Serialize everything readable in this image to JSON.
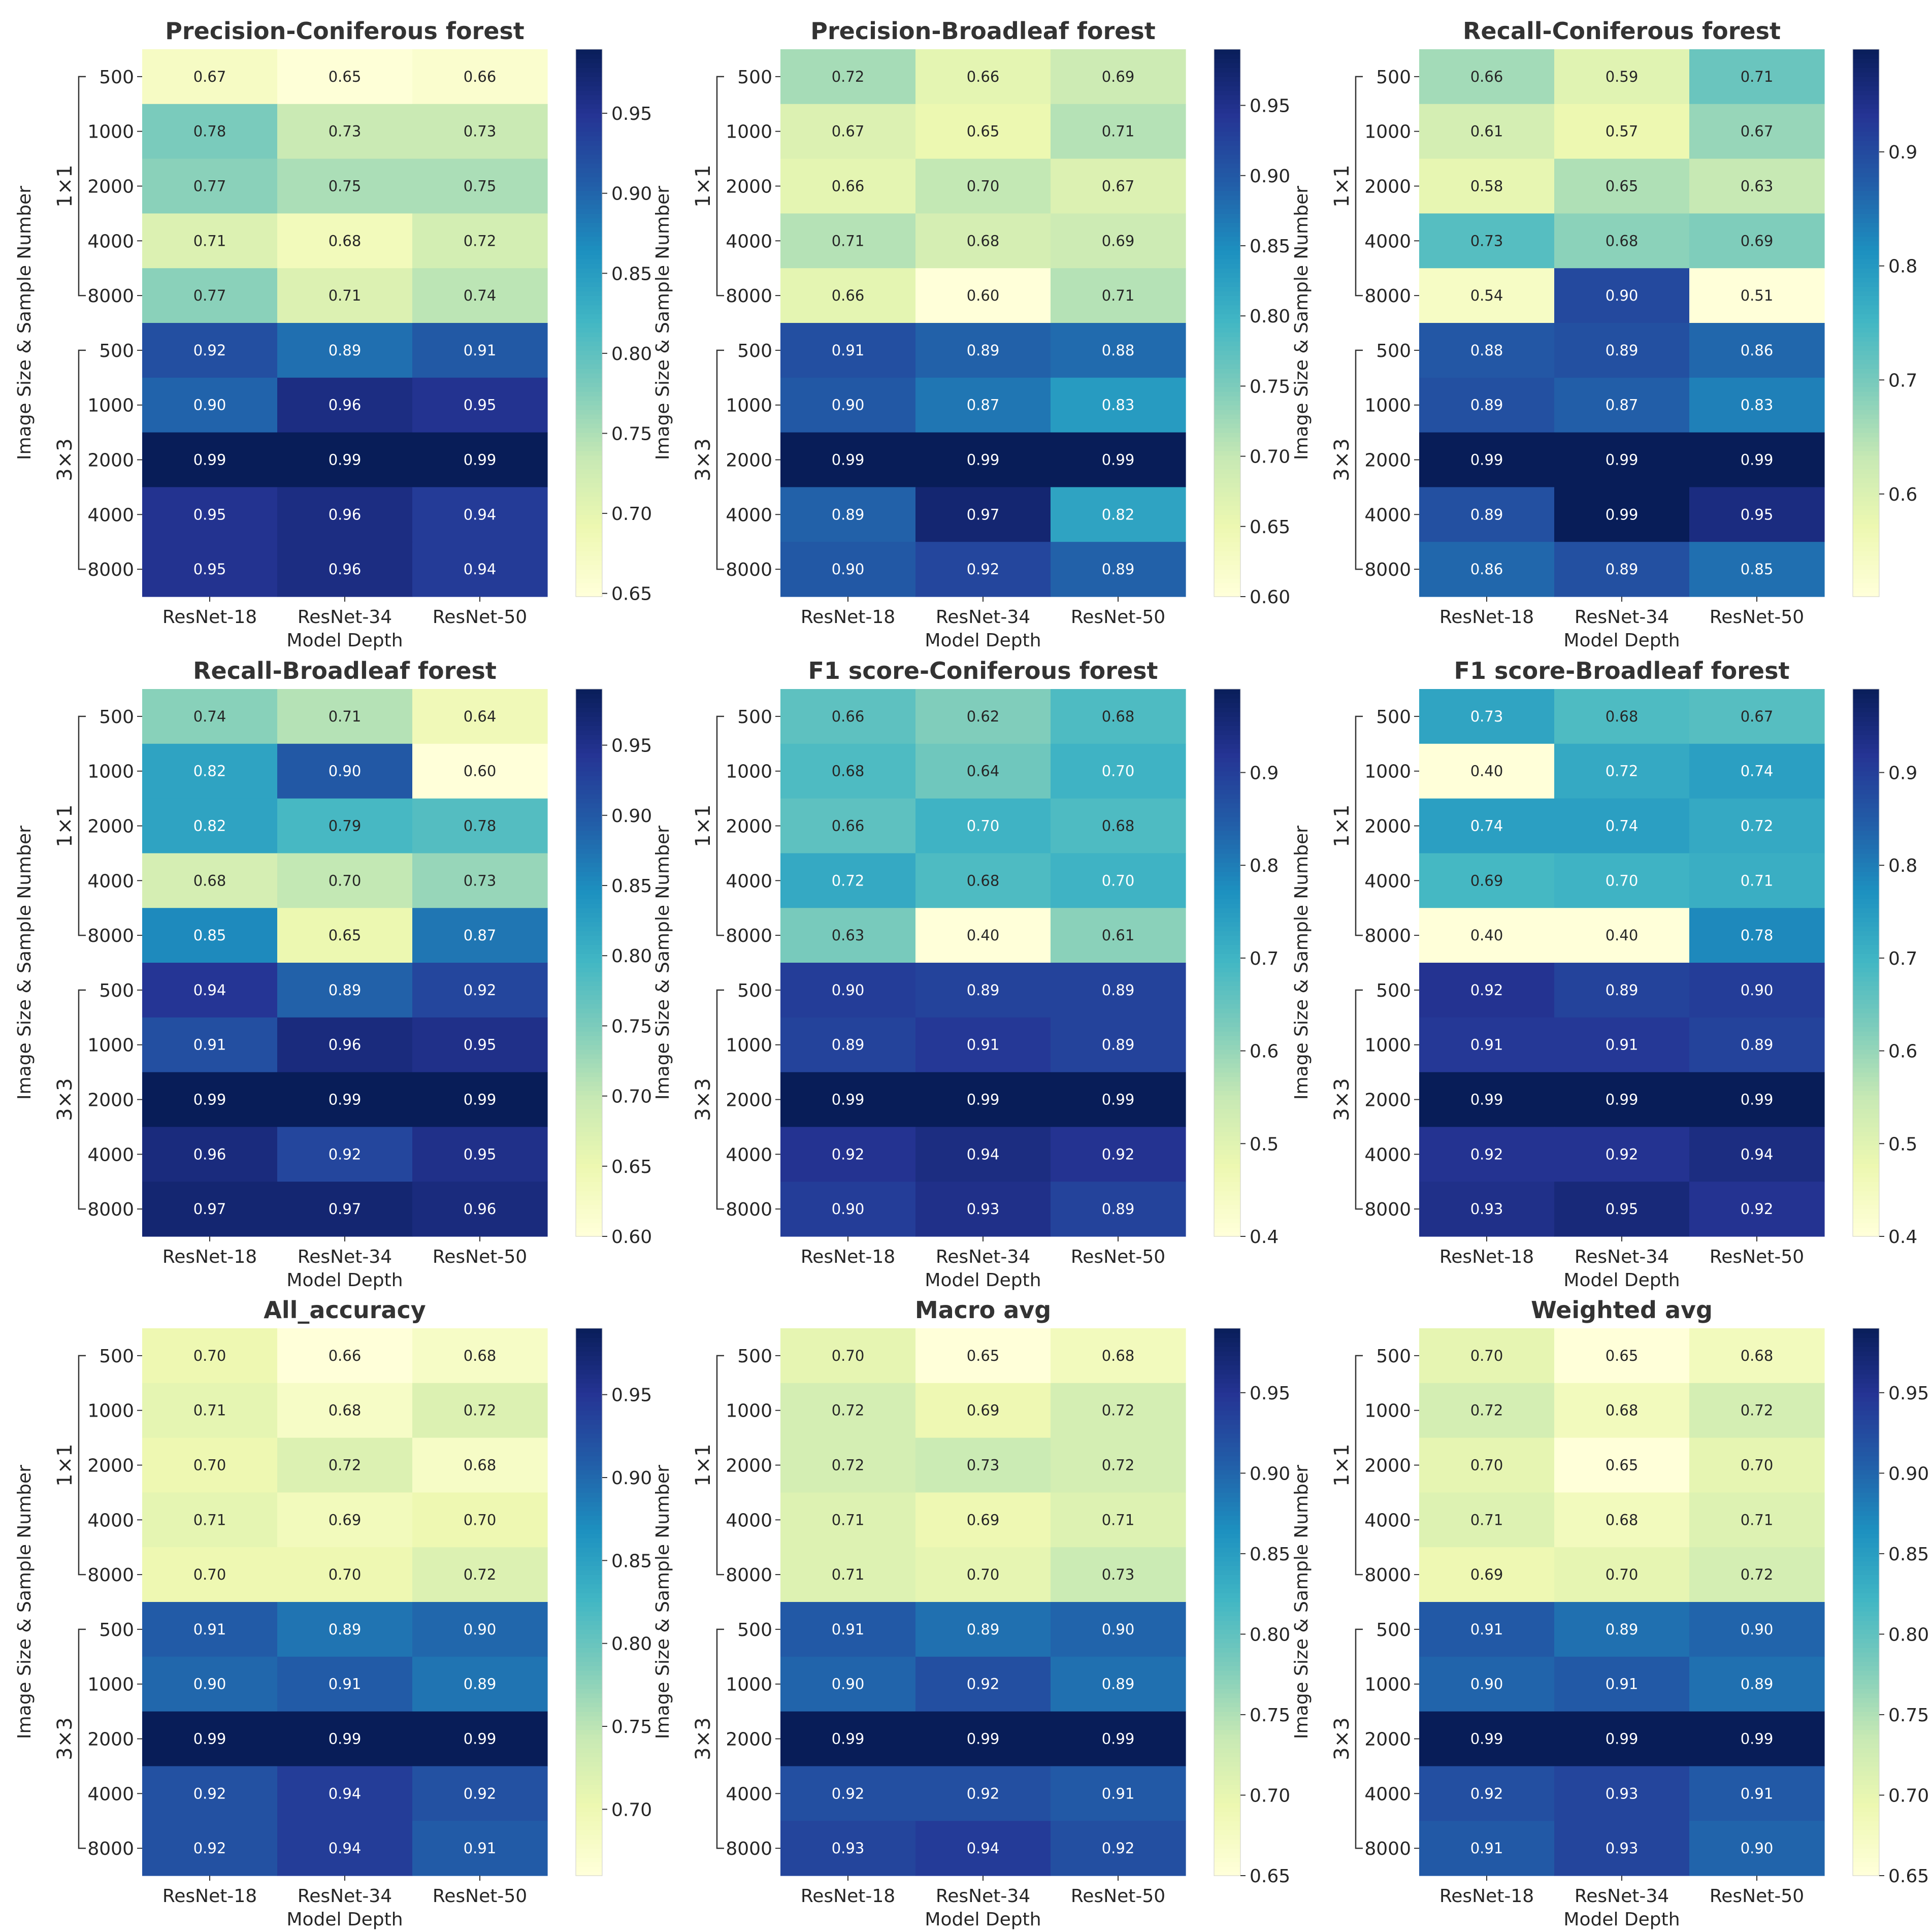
{
  "figure": {
    "colormap": "YlGnBu"
  },
  "chart_data": [
    {
      "type": "heatmap",
      "title": "Precision-Coniferous forest",
      "xlabel": "Model Depth",
      "ylabel": "Image  Size & Sample Number",
      "x_categories": [
        "ResNet-18",
        "ResNet-34",
        "ResNet-50"
      ],
      "row_groups": [
        {
          "label": "1×1",
          "rows": [
            "500",
            "1000",
            "2000",
            "4000",
            "8000"
          ]
        },
        {
          "label": "3×3",
          "rows": [
            "500",
            "1000",
            "2000",
            "4000",
            "8000"
          ]
        }
      ],
      "values": [
        [
          0.67,
          0.65,
          0.66
        ],
        [
          0.78,
          0.73,
          0.73
        ],
        [
          0.77,
          0.75,
          0.75
        ],
        [
          0.71,
          0.68,
          0.72
        ],
        [
          0.77,
          0.71,
          0.74
        ],
        [
          0.92,
          0.89,
          0.91
        ],
        [
          0.9,
          0.96,
          0.95
        ],
        [
          0.99,
          0.99,
          0.99
        ],
        [
          0.95,
          0.96,
          0.94
        ],
        [
          0.95,
          0.96,
          0.94
        ]
      ],
      "colorbar": {
        "range": [
          0.648,
          0.99
        ],
        "ticks": [
          "0.65",
          "0.70",
          "0.75",
          "0.80",
          "0.85",
          "0.90",
          "0.95"
        ]
      }
    },
    {
      "type": "heatmap",
      "title": "Precision-Broadleaf forest",
      "xlabel": "Model Depth",
      "ylabel": "Image  Size & Sample Number",
      "x_categories": [
        "ResNet-18",
        "ResNet-34",
        "ResNet-50"
      ],
      "row_groups": [
        {
          "label": "1×1",
          "rows": [
            "500",
            "1000",
            "2000",
            "4000",
            "8000"
          ]
        },
        {
          "label": "3×3",
          "rows": [
            "500",
            "1000",
            "2000",
            "4000",
            "8000"
          ]
        }
      ],
      "values": [
        [
          0.72,
          0.66,
          0.69
        ],
        [
          0.67,
          0.65,
          0.71
        ],
        [
          0.66,
          0.7,
          0.67
        ],
        [
          0.71,
          0.68,
          0.69
        ],
        [
          0.66,
          0.6,
          0.71
        ],
        [
          0.91,
          0.89,
          0.88
        ],
        [
          0.9,
          0.87,
          0.83
        ],
        [
          0.99,
          0.99,
          0.99
        ],
        [
          0.89,
          0.97,
          0.82
        ],
        [
          0.9,
          0.92,
          0.89
        ]
      ],
      "colorbar": {
        "range": [
          0.6,
          0.99
        ],
        "ticks": [
          "0.60",
          "0.65",
          "0.70",
          "0.75",
          "0.80",
          "0.85",
          "0.90",
          "0.95"
        ]
      }
    },
    {
      "type": "heatmap",
      "title": "Recall-Coniferous forest",
      "xlabel": "Model Depth",
      "ylabel": "Image  Size & Sample Number",
      "x_categories": [
        "ResNet-18",
        "ResNet-34",
        "ResNet-50"
      ],
      "row_groups": [
        {
          "label": "1×1",
          "rows": [
            "500",
            "1000",
            "2000",
            "4000",
            "8000"
          ]
        },
        {
          "label": "3×3",
          "rows": [
            "500",
            "1000",
            "2000",
            "4000",
            "8000"
          ]
        }
      ],
      "values": [
        [
          0.66,
          0.59,
          0.71
        ],
        [
          0.61,
          0.57,
          0.67
        ],
        [
          0.58,
          0.65,
          0.63
        ],
        [
          0.73,
          0.68,
          0.69
        ],
        [
          0.54,
          0.9,
          0.51
        ],
        [
          0.88,
          0.89,
          0.86
        ],
        [
          0.89,
          0.87,
          0.83
        ],
        [
          0.99,
          0.99,
          0.99
        ],
        [
          0.89,
          0.99,
          0.95
        ],
        [
          0.86,
          0.89,
          0.85
        ]
      ],
      "colorbar": {
        "range": [
          0.51,
          0.99
        ],
        "ticks": [
          "0.6",
          "0.7",
          "0.8",
          "0.9"
        ]
      }
    },
    {
      "type": "heatmap",
      "title": "Recall-Broadleaf forest",
      "xlabel": "Model Depth",
      "ylabel": "Image Size & Sample Number",
      "x_categories": [
        "ResNet-18",
        "ResNet-34",
        "ResNet-50"
      ],
      "row_groups": [
        {
          "label": "1×1",
          "rows": [
            "500",
            "1000",
            "2000",
            "4000",
            "8000"
          ]
        },
        {
          "label": "3×3",
          "rows": [
            "500",
            "1000",
            "2000",
            "4000",
            "8000"
          ]
        }
      ],
      "values": [
        [
          0.74,
          0.71,
          0.64
        ],
        [
          0.82,
          0.9,
          0.6
        ],
        [
          0.82,
          0.79,
          0.78
        ],
        [
          0.68,
          0.7,
          0.73
        ],
        [
          0.85,
          0.65,
          0.87
        ],
        [
          0.94,
          0.89,
          0.92
        ],
        [
          0.91,
          0.96,
          0.95
        ],
        [
          0.99,
          0.99,
          0.99
        ],
        [
          0.96,
          0.92,
          0.95
        ],
        [
          0.97,
          0.97,
          0.96
        ]
      ],
      "colorbar": {
        "range": [
          0.6,
          0.99
        ],
        "ticks": [
          "0.60",
          "0.65",
          "0.70",
          "0.75",
          "0.80",
          "0.85",
          "0.90",
          "0.95"
        ]
      }
    },
    {
      "type": "heatmap",
      "title": "F1 score-Coniferous forest",
      "xlabel": "Model Depth",
      "ylabel": "Image Size & Sample Number",
      "x_categories": [
        "ResNet-18",
        "ResNet-34",
        "ResNet-50"
      ],
      "row_groups": [
        {
          "label": "1×1",
          "rows": [
            "500",
            "1000",
            "2000",
            "4000",
            "8000"
          ]
        },
        {
          "label": "3×3",
          "rows": [
            "500",
            "1000",
            "2000",
            "4000",
            "8000"
          ]
        }
      ],
      "values": [
        [
          0.66,
          0.62,
          0.68
        ],
        [
          0.68,
          0.64,
          0.7
        ],
        [
          0.66,
          0.7,
          0.68
        ],
        [
          0.72,
          0.68,
          0.7
        ],
        [
          0.63,
          0.4,
          0.61
        ],
        [
          0.9,
          0.89,
          0.89
        ],
        [
          0.89,
          0.91,
          0.89
        ],
        [
          0.99,
          0.99,
          0.99
        ],
        [
          0.92,
          0.94,
          0.92
        ],
        [
          0.9,
          0.93,
          0.89
        ]
      ],
      "colorbar": {
        "range": [
          0.4,
          0.99
        ],
        "ticks": [
          "0.4",
          "0.5",
          "0.6",
          "0.7",
          "0.8",
          "0.9"
        ]
      }
    },
    {
      "type": "heatmap",
      "title": "F1 score-Broadleaf forest",
      "xlabel": "Model Depth",
      "ylabel": "Image Size & Sample Number",
      "x_categories": [
        "ResNet-18",
        "ResNet-34",
        "ResNet-50"
      ],
      "row_groups": [
        {
          "label": "1×1",
          "rows": [
            "500",
            "1000",
            "2000",
            "4000",
            "8000"
          ]
        },
        {
          "label": "3×3",
          "rows": [
            "500",
            "1000",
            "2000",
            "4000",
            "8000"
          ]
        }
      ],
      "values": [
        [
          0.73,
          0.68,
          0.67
        ],
        [
          0.4,
          0.72,
          0.74
        ],
        [
          0.74,
          0.74,
          0.72
        ],
        [
          0.69,
          0.7,
          0.71
        ],
        [
          0.4,
          0.4,
          0.78
        ],
        [
          0.92,
          0.89,
          0.9
        ],
        [
          0.91,
          0.91,
          0.89
        ],
        [
          0.99,
          0.99,
          0.99
        ],
        [
          0.92,
          0.92,
          0.94
        ],
        [
          0.93,
          0.95,
          0.92
        ]
      ],
      "colorbar": {
        "range": [
          0.4,
          0.99
        ],
        "ticks": [
          "0.4",
          "0.5",
          "0.6",
          "0.7",
          "0.8",
          "0.9"
        ]
      }
    },
    {
      "type": "heatmap",
      "title": "All_accuracy",
      "xlabel": "Model Depth",
      "ylabel": "Image Size & Sample Number",
      "x_categories": [
        "ResNet-18",
        "ResNet-34",
        "ResNet-50"
      ],
      "row_groups": [
        {
          "label": "1×1",
          "rows": [
            "500",
            "1000",
            "2000",
            "4000",
            "8000"
          ]
        },
        {
          "label": "3×3",
          "rows": [
            "500",
            "1000",
            "2000",
            "4000",
            "8000"
          ]
        }
      ],
      "values": [
        [
          0.7,
          0.66,
          0.68
        ],
        [
          0.71,
          0.68,
          0.72
        ],
        [
          0.7,
          0.72,
          0.68
        ],
        [
          0.71,
          0.69,
          0.7
        ],
        [
          0.7,
          0.7,
          0.72
        ],
        [
          0.91,
          0.89,
          0.9
        ],
        [
          0.9,
          0.91,
          0.89
        ],
        [
          0.99,
          0.99,
          0.99
        ],
        [
          0.92,
          0.94,
          0.92
        ],
        [
          0.92,
          0.94,
          0.91
        ]
      ],
      "colorbar": {
        "range": [
          0.66,
          0.99
        ],
        "ticks": [
          "0.70",
          "0.75",
          "0.80",
          "0.85",
          "0.90",
          "0.95"
        ]
      }
    },
    {
      "type": "heatmap",
      "title": "Macro avg",
      "xlabel": "Model Depth",
      "ylabel": "Image Size & Sample Number",
      "x_categories": [
        "ResNet-18",
        "ResNet-34",
        "ResNet-50"
      ],
      "row_groups": [
        {
          "label": "1×1",
          "rows": [
            "500",
            "1000",
            "2000",
            "4000",
            "8000"
          ]
        },
        {
          "label": "3×3",
          "rows": [
            "500",
            "1000",
            "2000",
            "4000",
            "8000"
          ]
        }
      ],
      "values": [
        [
          0.7,
          0.65,
          0.68
        ],
        [
          0.72,
          0.69,
          0.72
        ],
        [
          0.72,
          0.73,
          0.72
        ],
        [
          0.71,
          0.69,
          0.71
        ],
        [
          0.71,
          0.7,
          0.73
        ],
        [
          0.91,
          0.89,
          0.9
        ],
        [
          0.9,
          0.92,
          0.89
        ],
        [
          0.99,
          0.99,
          0.99
        ],
        [
          0.92,
          0.92,
          0.91
        ],
        [
          0.93,
          0.94,
          0.92
        ]
      ],
      "colorbar": {
        "range": [
          0.65,
          0.99
        ],
        "ticks": [
          "0.65",
          "0.70",
          "0.75",
          "0.80",
          "0.85",
          "0.90",
          "0.95"
        ]
      }
    },
    {
      "type": "heatmap",
      "title": "Weighted avg",
      "xlabel": "Model Depth",
      "ylabel": "Image Size & Sample Number",
      "x_categories": [
        "ResNet-18",
        "ResNet-34",
        "ResNet-50"
      ],
      "row_groups": [
        {
          "label": "1×1",
          "rows": [
            "500",
            "1000",
            "2000",
            "4000",
            "8000"
          ]
        },
        {
          "label": "3×3",
          "rows": [
            "500",
            "1000",
            "2000",
            "4000",
            "8000"
          ]
        }
      ],
      "values": [
        [
          0.7,
          0.65,
          0.68
        ],
        [
          0.72,
          0.68,
          0.72
        ],
        [
          0.7,
          0.65,
          0.7
        ],
        [
          0.71,
          0.68,
          0.71
        ],
        [
          0.69,
          0.7,
          0.72
        ],
        [
          0.91,
          0.89,
          0.9
        ],
        [
          0.9,
          0.91,
          0.89
        ],
        [
          0.99,
          0.99,
          0.99
        ],
        [
          0.92,
          0.93,
          0.91
        ],
        [
          0.91,
          0.93,
          0.9
        ]
      ],
      "colorbar": {
        "range": [
          0.65,
          0.99
        ],
        "ticks": [
          "0.65",
          "0.70",
          "0.75",
          "0.80",
          "0.85",
          "0.90",
          "0.95"
        ]
      }
    }
  ]
}
